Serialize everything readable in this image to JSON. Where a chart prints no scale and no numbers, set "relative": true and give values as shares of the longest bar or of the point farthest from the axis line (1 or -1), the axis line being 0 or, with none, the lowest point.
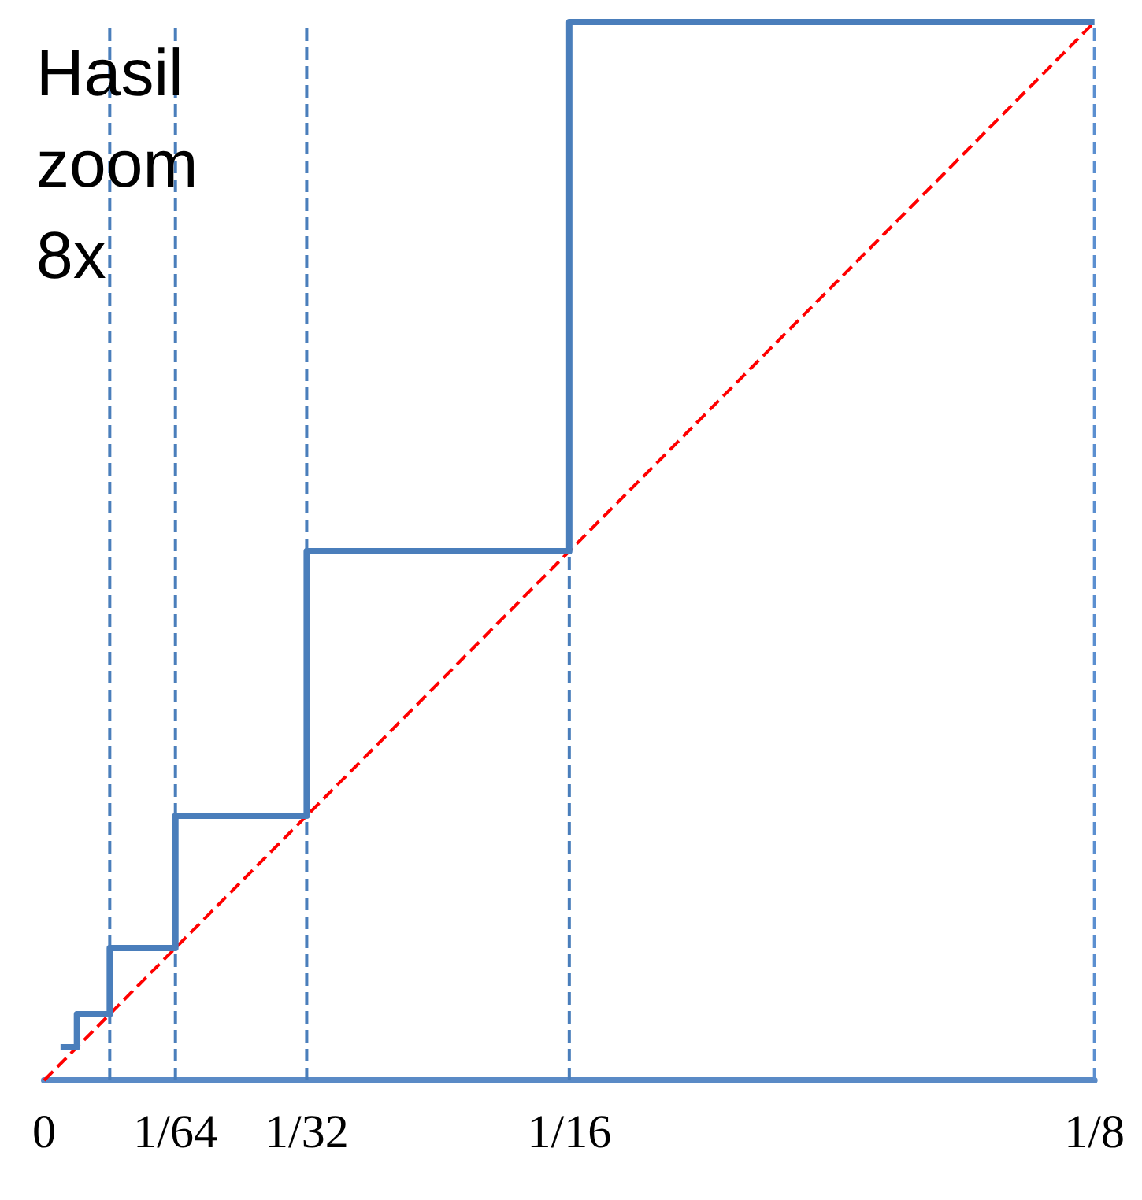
{
  "chart_data": {
    "type": "step",
    "title": "Hasil zoom 8x",
    "relative": true,
    "tick_labels": "x",
    "marker": "none",
    "xlim": [
      0,
      0.125
    ],
    "xticks": [
      0,
      {
        "value": 0.015625,
        "label": "1/64"
      },
      {
        "value": 0.03125,
        "label": "1/32"
      },
      {
        "value": 0.0625,
        "label": "1/16"
      },
      {
        "value": 0.125,
        "label": "1/8"
      }
    ],
    "series": [
      {
        "type": "step",
        "color": "#4a7ebb",
        "x": [
          0.001953125,
          0.00390625,
          0.0078125,
          0.015625,
          0.03125,
          0.0625,
          0.125
        ],
        "values": [
          0.03125,
          0.0625,
          0.125,
          0.25,
          0.5,
          1,
          1
        ]
      },
      {
        "type": "line",
        "color": "#ff0000",
        "line_style": "dashed",
        "x": [
          0,
          0.125
        ],
        "values": [
          0,
          1
        ]
      }
    ],
    "ref_lines": [
      {
        "axis": "x",
        "value": 0.0078125,
        "color": "#4a7ebb",
        "line_style": "dashed"
      },
      {
        "axis": "x",
        "value": 0.015625,
        "color": "#4a7ebb",
        "line_style": "dashed"
      },
      {
        "axis": "x",
        "value": 0.03125,
        "color": "#4a7ebb",
        "line_style": "dashed"
      },
      {
        "axis": "x",
        "value": 0.0625,
        "color": "#4a7ebb",
        "line_style": "dashed"
      },
      {
        "axis": "x",
        "value": 0.125,
        "color": "#5b8fd0",
        "line_style": "dashed"
      }
    ]
  }
}
